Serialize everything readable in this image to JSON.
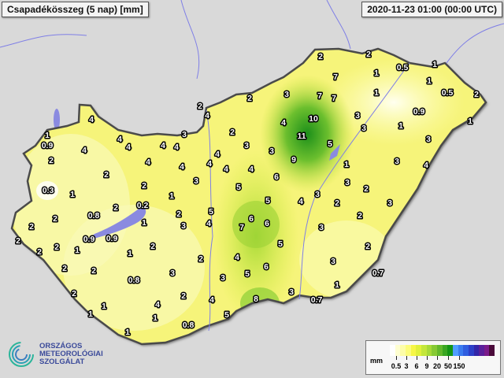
{
  "header": {
    "title": "Csapadékösszeg (5 nap) [mm]",
    "timestamp": "2020-11-23 01:00 (00:00 UTC)"
  },
  "legend": {
    "unit": "mm",
    "ticks": [
      "0.5",
      "3",
      "6",
      "9",
      "20",
      "50",
      "150"
    ],
    "colors": [
      "#ffffff",
      "#fefed0",
      "#fdfda8",
      "#fcfc7a",
      "#f6f645",
      "#e0f03a",
      "#c3e63a",
      "#a6d938",
      "#86c934",
      "#62b82c",
      "#3aa622",
      "#139515",
      "#4f9dff",
      "#3a7bf0",
      "#2f5de0",
      "#2c3fc8",
      "#3325a8",
      "#5a1f9a",
      "#7a1a8a",
      "#4a0a3a"
    ]
  },
  "map": {
    "values": [
      "4",
      "1",
      "0.9",
      "2",
      "0.3",
      "1",
      "2",
      "0.8",
      "2",
      "0.9",
      "0.9",
      "1",
      "2",
      "2",
      "2",
      "2",
      "2",
      "1",
      "1",
      "1",
      "4",
      "4",
      "4",
      "4",
      "4",
      "3",
      "4",
      "2",
      "2",
      "4",
      "3",
      "4",
      "4",
      "4",
      "2",
      "0.2",
      "1",
      "1",
      "2",
      "3",
      "5",
      "4",
      "3",
      "1",
      "2",
      "0.8",
      "3",
      "2",
      "4",
      "1",
      "0.8",
      "1",
      "2",
      "2",
      "3",
      "2",
      "4",
      "3",
      "11",
      "10",
      "9",
      "5",
      "6",
      "5",
      "4",
      "7",
      "6",
      "6",
      "4",
      "5",
      "6",
      "3",
      "4",
      "5",
      "8",
      "3",
      "7",
      "7",
      "7",
      "2",
      "2",
      "0.5",
      "1",
      "1",
      "1",
      "0.5",
      "2",
      "0.9",
      "3",
      "3",
      "1",
      "1",
      "3",
      "3",
      "4",
      "1",
      "3",
      "2",
      "3",
      "4",
      "2",
      "2",
      "3",
      "2",
      "4",
      "3",
      "2",
      "3",
      "0.7",
      "1",
      "0.7",
      "5",
      "5",
      "2"
    ],
    "colors": {
      "land": "#d9d9d9",
      "hungary": "#f6f47a",
      "border": "#4a4a4a",
      "water": "#8a8ae0",
      "river": "#7f7fe6"
    }
  },
  "logo": {
    "line1": "ORSZÁGOS",
    "line2": "METEOROLÓGIAI",
    "line3": "SZOLGÁLAT"
  }
}
